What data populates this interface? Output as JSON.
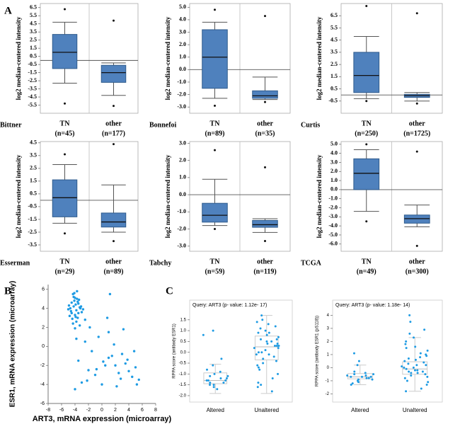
{
  "panel_labels": [
    "A",
    "B",
    "C"
  ],
  "chart_data": [
    {
      "type": "box",
      "dataset": "Bittner",
      "ylabel": "log2 median-centered intensity",
      "color": "#4f81bd",
      "ylim": [
        -6.5,
        7
      ],
      "yticks": [
        6.5,
        5.5,
        4.5,
        3.5,
        2.5,
        1.5,
        0.5,
        -0.5,
        -1.5,
        -2.5,
        -3.5,
        -4.5,
        -5.5
      ],
      "boxes": [
        {
          "category": "TN",
          "n_label": "(n=45)",
          "whislo": -2.8,
          "q1": -1.0,
          "med": 1.0,
          "q3": 3.2,
          "whishi": 4.7,
          "fliers": [
            6.3,
            -5.3
          ]
        },
        {
          "category": "other",
          "n_label": "(n=177)",
          "whislo": -4.3,
          "q1": -2.7,
          "med": -1.5,
          "q3": -0.6,
          "whishi": -0.3,
          "fliers": [
            4.9,
            -5.6
          ]
        }
      ]
    },
    {
      "type": "box",
      "dataset": "Bonnefoi",
      "ylabel": "log2 median-centered intensity",
      "color": "#4f81bd",
      "ylim": [
        -3.5,
        5.3
      ],
      "yticks": [
        {
          "value": 5,
          "label": "5.0"
        },
        {
          "value": 4,
          "label": "4.0"
        },
        {
          "value": 3,
          "label": "3.0"
        },
        {
          "value": 2,
          "label": "2.0"
        },
        {
          "value": 1,
          "label": "1.0"
        },
        {
          "value": 0,
          "label": "0.0"
        },
        {
          "value": -1,
          "label": "-1.0"
        },
        {
          "value": -2,
          "label": "-2.0"
        },
        {
          "value": -3,
          "label": "-3.0"
        }
      ],
      "boxes": [
        {
          "category": "TN",
          "n_label": "(n=89)",
          "whislo": -2.3,
          "q1": -1.5,
          "med": 1.0,
          "q3": 3.2,
          "whishi": 3.8,
          "fliers": [
            4.8,
            -2.9
          ]
        },
        {
          "category": "other",
          "n_label": "(n=35)",
          "whislo": -2.4,
          "q1": -2.3,
          "med": -2.1,
          "q3": -1.7,
          "whishi": -0.6,
          "fliers": [
            4.3,
            -2.6
          ]
        }
      ]
    },
    {
      "type": "box",
      "dataset": "Curtis",
      "ylabel": "log2 median-centered intensity",
      "color": "#4f81bd",
      "ylim": [
        -1.5,
        7.5
      ],
      "yticks": [
        6.5,
        5.5,
        4.5,
        3.5,
        2.5,
        1.5,
        0.5,
        -0.5
      ],
      "boxes": [
        {
          "category": "TN",
          "n_label": "(n=250)",
          "whislo": -0.3,
          "q1": 0.2,
          "med": 1.6,
          "q3": 3.5,
          "whishi": 4.8,
          "fliers": [
            7.3,
            -0.5
          ]
        },
        {
          "category": "other",
          "n_label": "(n=1725)",
          "whislo": -0.5,
          "q1": -0.2,
          "med": -0.05,
          "q3": 0.05,
          "whishi": 0.2,
          "fliers": [
            6.7,
            -0.7
          ]
        }
      ]
    },
    {
      "type": "box",
      "dataset": "Esserman",
      "ylabel": "log2 median-centered intensity",
      "color": "#4f81bd",
      "ylim": [
        -4,
        4.6
      ],
      "yticks": [
        4.5,
        3.5,
        2.5,
        1.5,
        0.5,
        -0.5,
        -1.5,
        -2.5,
        -3.5
      ],
      "boxes": [
        {
          "category": "TN",
          "n_label": "(n=29)",
          "whislo": -1.8,
          "q1": -1.3,
          "med": 0.2,
          "q3": 1.6,
          "whishi": 2.8,
          "fliers": [
            3.6,
            -2.6
          ]
        },
        {
          "category": "other",
          "n_label": "(n=89)",
          "whislo": -2.5,
          "q1": -2.1,
          "med": -1.7,
          "q3": -1.0,
          "whishi": 1.2,
          "fliers": [
            4.4,
            -3.2
          ]
        }
      ]
    },
    {
      "type": "box",
      "dataset": "Tabchy",
      "ylabel": "log2 median-centered intensity",
      "color": "#4f81bd",
      "ylim": [
        -3.3,
        3.1
      ],
      "yticks": [
        {
          "value": 3,
          "label": "3.0"
        },
        {
          "value": 2,
          "label": "2.0"
        },
        {
          "value": 1,
          "label": "1.0"
        },
        {
          "value": 0,
          "label": "0.0"
        },
        {
          "value": -1,
          "label": "-1.0"
        },
        {
          "value": -2,
          "label": "-2.0"
        },
        {
          "value": -3,
          "label": "-3.0"
        }
      ],
      "boxes": [
        {
          "category": "TN",
          "n_label": "(n=59)",
          "whislo": -1.8,
          "q1": -1.6,
          "med": -1.2,
          "q3": -0.5,
          "whishi": 0.9,
          "fliers": [
            2.6,
            -2.0
          ]
        },
        {
          "category": "other",
          "n_label": "(n=119)",
          "whislo": -2.2,
          "q1": -1.9,
          "med": -1.75,
          "q3": -1.5,
          "whishi": -1.4,
          "fliers": [
            1.6,
            -2.7
          ]
        }
      ]
    },
    {
      "type": "box",
      "dataset": "TCGA",
      "ylabel": "log2 median-centered intensity",
      "color": "#4f81bd",
      "ylim": [
        -6.8,
        5.3
      ],
      "yticks": [
        {
          "value": 5,
          "label": "5.0"
        },
        {
          "value": 4,
          "label": "4.0"
        },
        {
          "value": 3,
          "label": "3.0"
        },
        {
          "value": 2,
          "label": "2.0"
        },
        {
          "value": 1,
          "label": "1.0"
        },
        {
          "value": 0,
          "label": "0.0"
        },
        {
          "value": -1,
          "label": "-1.0"
        },
        {
          "value": -2,
          "label": "-2.0"
        },
        {
          "value": -3,
          "label": "-3.0"
        },
        {
          "value": -4,
          "label": "-4.0"
        },
        {
          "value": -5,
          "label": "-5.0"
        },
        {
          "value": -6,
          "label": "-6.0"
        }
      ],
      "boxes": [
        {
          "category": "TN",
          "n_label": "(n=49)",
          "whislo": -2.4,
          "q1": 0.0,
          "med": 1.8,
          "q3": 3.4,
          "whishi": 4.4,
          "fliers": [
            5.0,
            -3.5
          ]
        },
        {
          "category": "other",
          "n_label": "(n=300)",
          "whislo": -4.1,
          "q1": -3.7,
          "med": -3.2,
          "q3": -2.8,
          "whishi": -1.7,
          "fliers": [
            4.2,
            -6.2
          ]
        }
      ]
    },
    {
      "type": "scatter",
      "xlabel": "ART3, mRNA expression (microarray)",
      "ylabel": "ESR1, mRNA expression (microarray)",
      "color": "#1e9be3",
      "xlim": [
        -8,
        8
      ],
      "ylim": [
        -6,
        6.5
      ],
      "xticks": [
        -8,
        -6,
        -4,
        -2,
        0,
        2,
        4,
        6,
        8
      ],
      "yticks": [
        -6,
        -4,
        -2,
        0,
        2,
        4,
        6
      ],
      "x": [
        -4.2,
        -3.8,
        -4.5,
        -3.5,
        -4.0,
        -3.2,
        -4.8,
        -3.9,
        -4.3,
        -3.6,
        -4.1,
        -3.3,
        -4.6,
        -3.7,
        -4.4,
        -3.0,
        -4.9,
        -3.4,
        -4.0,
        -3.8,
        -4.2,
        -3.5,
        -2.8,
        -4.7,
        -3.9,
        -4.1,
        -3.6,
        -4.3,
        -3.1,
        -4.5,
        -2.5,
        -5.0,
        -3.7,
        -4.0,
        -3.3,
        -3.5,
        -2.0,
        -1.0,
        0.5,
        1.5,
        2.5,
        3.5,
        4.5,
        5.0,
        -2.5,
        -1.5,
        0.0,
        1.0,
        2.0,
        3.0,
        4.0,
        5.5,
        -3.0,
        -0.5,
        1.8,
        2.8,
        3.8,
        -4.0,
        -2.2,
        0.8,
        1.2,
        -1.8,
        4.8,
        3.2,
        -0.8,
        0.2,
        2.2,
        1.0,
        -3.8,
        5.2
      ],
      "y": [
        4.2,
        3.8,
        4.6,
        3.5,
        5.1,
        4.0,
        3.2,
        4.4,
        5.5,
        3.0,
        4.8,
        4.1,
        3.7,
        5.8,
        2.9,
        3.6,
        4.3,
        4.9,
        3.3,
        2.6,
        5.2,
        4.5,
        3.9,
        4.0,
        3.1,
        5.6,
        4.7,
        2.4,
        4.2,
        3.5,
        2.8,
        3.9,
        5.0,
        1.9,
        2.2,
        -1.5,
        -2.5,
        -3.0,
        -2.0,
        -1.0,
        -2.8,
        -1.8,
        -3.2,
        -2.2,
        0.5,
        -0.5,
        -4.0,
        -1.2,
        -2.0,
        -0.8,
        -2.6,
        -3.5,
        -3.8,
        1.0,
        0.2,
        -3.4,
        -1.4,
        -4.5,
        -3.6,
        3.0,
        5.5,
        2.0,
        -0.5,
        1.8,
        -2.4,
        -1.6,
        -4.2,
        1.5,
        0.8,
        -4.0
      ]
    },
    {
      "type": "strip",
      "title": "Query: ART3 (p- value: 1.12e- 17)",
      "ylabel": "RPPA score (antibody ESR1)",
      "color": "#1e9be3",
      "ylim": [
        -2.1,
        1.95
      ],
      "yticks": [
        1.5,
        {
          "value": 1,
          "label": "1.0"
        },
        0.5,
        {
          "value": 0,
          "label": "0.0"
        },
        -0.5,
        {
          "value": -1,
          "label": "-1.0"
        },
        -1.5,
        {
          "value": -2,
          "label": "-2.0"
        }
      ],
      "groups": [
        {
          "category": "Altered",
          "whislo": -1.9,
          "q1": -1.45,
          "med": -1.3,
          "q3": -0.95,
          "whishi": -0.55,
          "points": [
            -1.3,
            -1.5,
            -1.1,
            -1.4,
            -1.6,
            -1.2,
            -0.9,
            -1.3,
            -1.7,
            -1.0,
            -0.6,
            -1.4,
            -1.2,
            1.0,
            0.8,
            -0.3,
            -1.5,
            -1.1,
            -0.8,
            -1.3
          ]
        },
        {
          "category": "Unaltered",
          "whislo": -1.9,
          "q1": -0.35,
          "med": 0.25,
          "q3": 0.75,
          "whishi": 1.7,
          "points": [
            1.7,
            1.5,
            1.2,
            1.0,
            0.9,
            0.8,
            0.7,
            0.6,
            0.5,
            0.4,
            0.3,
            0.3,
            0.2,
            0.1,
            0.0,
            -0.1,
            -0.2,
            -0.3,
            -0.4,
            -0.5,
            -0.6,
            -0.8,
            -1.0,
            -1.2,
            -1.4,
            -1.6,
            -1.8,
            1.4,
            1.1,
            0.5,
            0.6,
            0.2,
            -0.1,
            0.4,
            0.9,
            -0.7,
            0.0,
            0.3,
            1.3,
            -1.5
          ]
        }
      ]
    },
    {
      "type": "strip",
      "title": "Query: ART3 (p- value: 1.18e- 14)",
      "ylabel": "RPPA score (antibody ESR1 (pS118))",
      "color": "#1e9be3",
      "ylim": [
        -2.3,
        4.4
      ],
      "yticks": [
        4,
        3,
        2,
        1,
        0,
        -1,
        -2
      ],
      "groups": [
        {
          "category": "Altered",
          "whislo": -1.3,
          "q1": -0.85,
          "med": -0.7,
          "q3": -0.45,
          "whishi": 0.2,
          "points": [
            -0.7,
            -0.9,
            -0.5,
            -0.8,
            -1.1,
            -0.6,
            -0.4,
            -1.2,
            -0.7,
            0.5,
            0.2,
            -0.3,
            -0.9,
            -1.0,
            -0.6,
            -0.8,
            1.1,
            -0.5,
            -1.3,
            -0.7
          ]
        },
        {
          "category": "Unaltered",
          "whislo": -1.8,
          "q1": -0.5,
          "med": -0.1,
          "q3": 0.45,
          "whishi": 2.3,
          "points": [
            4.0,
            3.5,
            2.9,
            2.3,
            2.0,
            1.6,
            1.3,
            1.0,
            0.8,
            0.6,
            0.4,
            0.2,
            0.1,
            0.0,
            -0.1,
            -0.2,
            -0.3,
            -0.4,
            -0.5,
            -0.6,
            -0.8,
            -1.0,
            -1.3,
            -1.6,
            -1.8,
            1.8,
            1.1,
            0.5,
            0.3,
            -0.2,
            0.7,
            -0.7,
            0.0,
            0.9,
            -0.4,
            1.5,
            2.6,
            -1.1,
            0.2,
            -0.3
          ]
        }
      ]
    }
  ]
}
